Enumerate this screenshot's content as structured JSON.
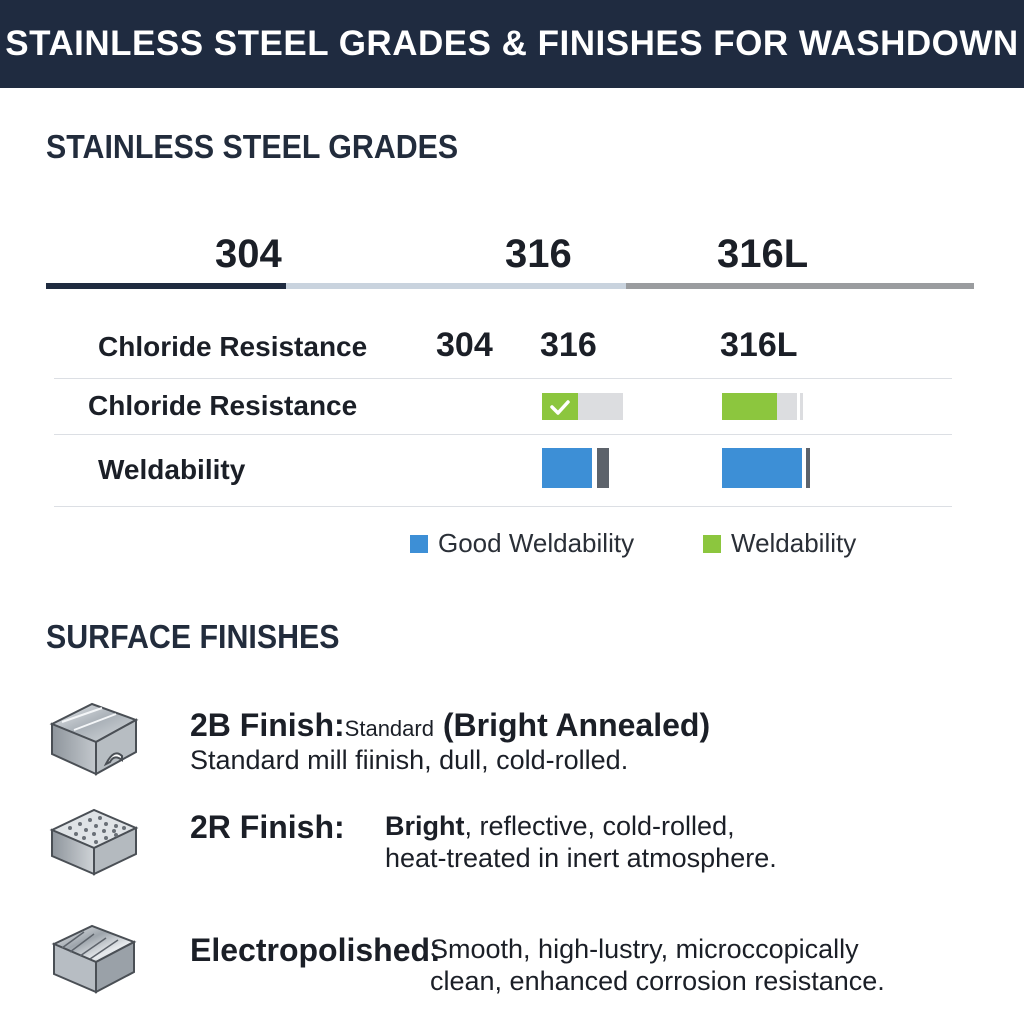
{
  "header": {
    "title": "STAINLESS STEEL GRADES & FINISHES FOR WASHDOWN"
  },
  "grades_section": {
    "title": "STAINLESS STEEL GRADES",
    "grades": [
      "304",
      "316",
      "316L"
    ],
    "rows": [
      {
        "label": "Chloride Resistance",
        "col_heads": [
          "304",
          "316",
          "316L"
        ]
      },
      {
        "label": "Chloride Resistance"
      },
      {
        "label": "Weldability"
      }
    ],
    "legend": [
      {
        "label": "Good Weldability",
        "color": "#3d8fd6"
      },
      {
        "label": "Weldability",
        "color": "#8cc63e"
      }
    ],
    "colors": {
      "line_304": "#1f2b40",
      "line_316": "#c9d3de",
      "line_316L": "#9a9c9f",
      "check": "#ffffff"
    }
  },
  "finishes_section": {
    "title": "SURFACE FINISHES",
    "items": [
      {
        "icon": "cube-brushed-icon",
        "name": "2B Finish:",
        "small": "Standard",
        "name_suffix": " (Bright Annealed)",
        "line1": "Standard mill fiinish, dull, cold-rolled."
      },
      {
        "icon": "cube-dotted-icon",
        "name": "2R Finish:",
        "bold_word": "Bright",
        "line1": ", reflective, cold-rolled,",
        "line2": "heat-treated in inert atmosphere."
      },
      {
        "icon": "cube-polished-icon",
        "name": "Electropolished:",
        "line1": "Smooth, high-lustry, microccopically",
        "line2": "clean, enhanced corrosion resistance."
      }
    ]
  }
}
